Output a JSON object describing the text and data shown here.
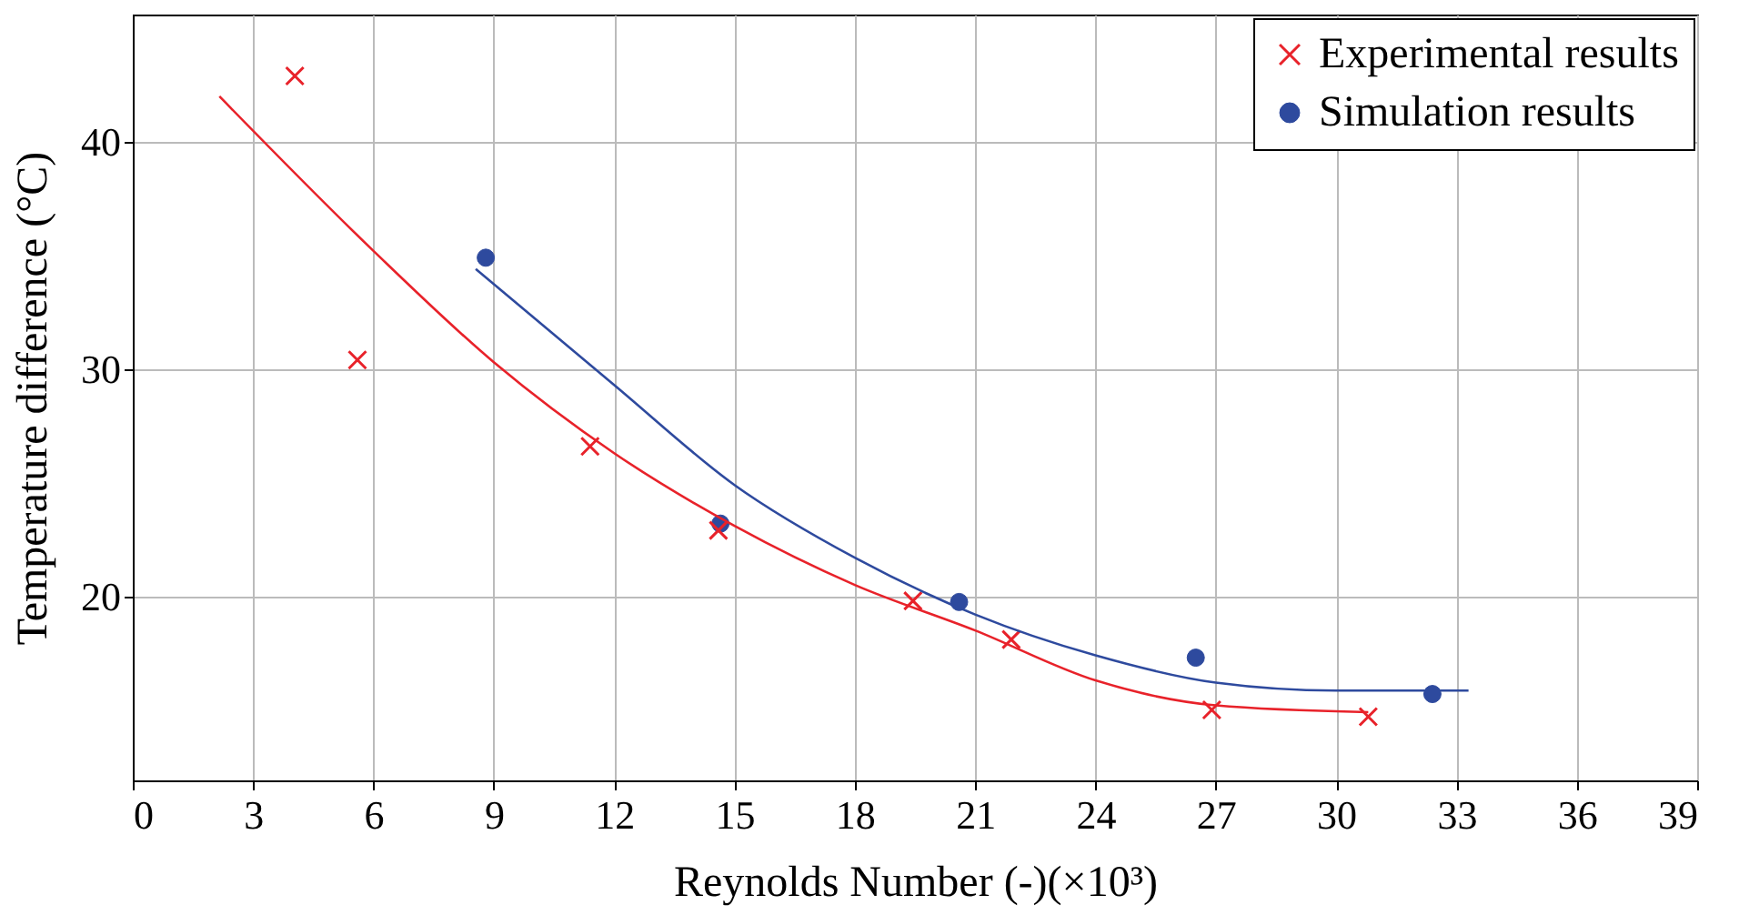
{
  "chart_data": {
    "type": "scatter",
    "xlabel": "Reynolds Number (-)(×10³)",
    "ylabel": "Temperature difference (°C)",
    "xlim": [
      0,
      39
    ],
    "ylim": [
      11.9,
      45.6
    ],
    "xticks": [
      0,
      3,
      6,
      9,
      12,
      15,
      18,
      21,
      24,
      27,
      30,
      33,
      36,
      39
    ],
    "yticks": [
      20,
      30,
      40
    ],
    "grid": true,
    "legend": "top right",
    "series": [
      {
        "name": "Experimental results",
        "marker": "cross",
        "color": "#e8222a",
        "x": [
          4.04,
          5.6,
          11.4,
          14.6,
          19.45,
          21.9,
          26.9,
          30.8
        ],
        "values": [
          42.9,
          30.4,
          26.6,
          22.9,
          19.8,
          18.1,
          15.0,
          14.7
        ]
      },
      {
        "name": "Simulation results",
        "marker": "circle",
        "color": "#2e4a9e",
        "x": [
          8.8,
          14.65,
          20.6,
          26.5,
          32.4
        ],
        "values": [
          34.9,
          23.2,
          19.75,
          17.3,
          15.7
        ]
      },
      {
        "type": "line",
        "color": "#e8222a",
        "x": [
          2.16,
          6,
          9,
          12,
          15,
          18,
          21,
          24,
          27,
          30.8
        ],
        "values": [
          42.0,
          35.2,
          30.3,
          26.3,
          23.1,
          20.5,
          18.5,
          16.3,
          15.2,
          14.9
        ]
      },
      {
        "type": "line",
        "color": "#2e4a9e",
        "x": [
          8.55,
          12,
          15,
          18,
          21,
          24,
          27,
          30,
          33.3
        ],
        "values": [
          34.4,
          29.3,
          24.9,
          21.7,
          19.2,
          17.4,
          16.2,
          15.85,
          15.85
        ]
      }
    ]
  }
}
